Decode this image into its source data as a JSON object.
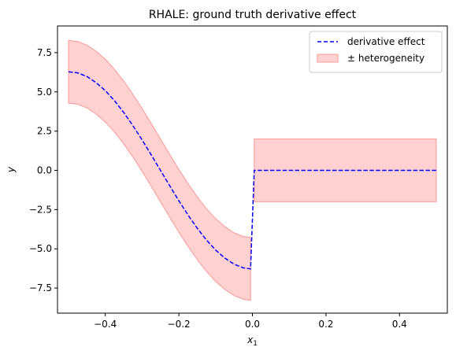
{
  "chart_data": {
    "type": "line",
    "title": "RHALE: ground truth derivative effect",
    "xlabel": "x",
    "xlabel_sub": "1",
    "ylabel": "y",
    "xlim": [
      -0.53,
      0.53
    ],
    "ylim": [
      -9.1,
      9.2
    ],
    "xticks": [
      -0.4,
      -0.2,
      0.0,
      0.2,
      0.4
    ],
    "xtick_labels": [
      "−0.4",
      "−0.2",
      "0.0",
      "0.2",
      "0.4"
    ],
    "yticks": [
      -7.5,
      -5.0,
      -2.5,
      0.0,
      2.5,
      5.0,
      7.5
    ],
    "ytick_labels": [
      "−7.5",
      "−5.0",
      "−2.5",
      "0.0",
      "2.5",
      "5.0",
      "7.5"
    ],
    "legend_position": "top-right",
    "series": [
      {
        "name": "derivative effect",
        "style": "dashed",
        "color": "#0000ff",
        "x": [
          -0.5,
          -0.475,
          -0.45,
          -0.425,
          -0.4,
          -0.375,
          -0.35,
          -0.325,
          -0.3,
          -0.275,
          -0.25,
          -0.225,
          -0.2,
          -0.175,
          -0.15,
          -0.125,
          -0.1,
          -0.075,
          -0.05,
          -0.025,
          -0.005,
          0.005,
          0.1,
          0.2,
          0.3,
          0.4,
          0.5
        ],
        "values": [
          6.28,
          6.21,
          5.98,
          5.59,
          5.08,
          4.44,
          3.69,
          2.85,
          1.94,
          0.98,
          0.0,
          -0.98,
          -1.94,
          -2.85,
          -3.69,
          -4.44,
          -5.08,
          -5.59,
          -5.98,
          -6.21,
          -6.28,
          0.0,
          0.0,
          0.0,
          0.0,
          0.0,
          0.0
        ]
      }
    ],
    "band": {
      "name": "± heterogeneity",
      "color": "#ff9999",
      "halfwidth": 2.0
    }
  }
}
